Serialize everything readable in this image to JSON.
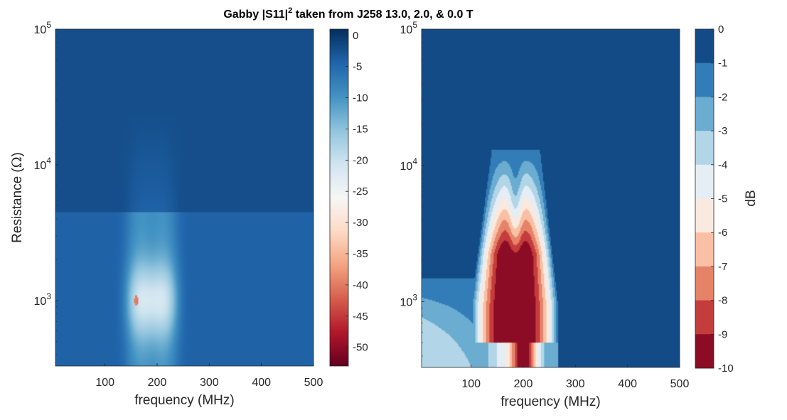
{
  "figure": {
    "title": "Gabby |S11|² taken from J258 13.0, 2.0, & 0.0 T"
  },
  "colors": {
    "dark_red": "#67001f",
    "red": "#b2182b",
    "mid_red": "#d6604d",
    "salmon": "#f4a582",
    "peach": "#fddbc7",
    "white": "#f7f7f7",
    "pale_blue": "#d1e5f0",
    "light_blue": "#92c5de",
    "mid_blue": "#4393c3",
    "blue": "#2166ac",
    "dark_blue": "#053061",
    "frame": "#262626"
  },
  "chart_data": [
    {
      "type": "heatmap",
      "title": "",
      "xlabel": "frequency (MHz)",
      "ylabel": "Resistance (Ω)",
      "xlim": [
        5,
        500
      ],
      "ylim": [
        330,
        100000
      ],
      "yscale": "log",
      "x_ticks": [
        100,
        200,
        300,
        400,
        500
      ],
      "x_tick_labels": [
        "100",
        "200",
        "300",
        "400",
        "500"
      ],
      "y_ticks": [
        1000,
        10000,
        100000
      ],
      "y_tick_labels": [
        {
          "base": "10",
          "exp": "3"
        },
        {
          "base": "10",
          "exp": "4"
        },
        {
          "base": "10",
          "exp": "5"
        }
      ],
      "colorbar": {
        "label": "",
        "clim": [
          -53,
          1
        ],
        "ticks": [
          0,
          -5,
          -10,
          -15,
          -20,
          -25,
          -30,
          -35,
          -40,
          -45,
          -50
        ],
        "tick_labels": [
          "0",
          "-5",
          "-10",
          "-15",
          "-20",
          "-25",
          "-30",
          "-35",
          "-40",
          "-45",
          "-50"
        ],
        "type": "continuous"
      },
      "background_value": -2,
      "features": [
        {
          "kind": "resonance_dip",
          "f_center": 190,
          "f_halfwidth": 48,
          "r_center": 1000,
          "r_range": [
            330,
            4500
          ],
          "min_value": -22
        },
        {
          "kind": "resonance_dip",
          "f_center": 190,
          "f_halfwidth": 45,
          "r_center": 3000,
          "r_range": [
            4500,
            25000
          ],
          "min_value": -4
        },
        {
          "kind": "point_minimum",
          "f": 160,
          "r": 1000,
          "value": -40
        }
      ]
    },
    {
      "type": "heatmap",
      "title": "",
      "xlabel": "frequency (MHz)",
      "ylabel": "",
      "xlim": [
        5,
        500
      ],
      "ylim": [
        330,
        100000
      ],
      "yscale": "log",
      "x_ticks": [
        100,
        200,
        300,
        400,
        500
      ],
      "x_tick_labels": [
        "100",
        "200",
        "300",
        "400",
        "500"
      ],
      "y_ticks": [
        1000,
        10000,
        100000
      ],
      "y_tick_labels": [
        {
          "base": "10",
          "exp": "3"
        },
        {
          "base": "10",
          "exp": "4"
        },
        {
          "base": "10",
          "exp": "5"
        }
      ],
      "colorbar": {
        "label": "dB",
        "clim": [
          -10,
          0
        ],
        "ticks": [
          0,
          -1,
          -2,
          -3,
          -4,
          -5,
          -6,
          -7,
          -8,
          -9,
          -10
        ],
        "tick_labels": [
          "0",
          "-1",
          "-2",
          "-3",
          "-4",
          "-5",
          "-6",
          "-7",
          "-8",
          "-9",
          "-10"
        ],
        "type": "discrete",
        "levels": 10
      },
      "background_value": -0.5,
      "features": [
        {
          "kind": "twin_peak_region",
          "peaks_f": [
            157,
            213
          ],
          "f_edges": [
            140,
            232
          ],
          "r_top": 13000,
          "r_bottom": 330,
          "min_value": -10
        },
        {
          "kind": "low_frequency_band",
          "f_range": [
            5,
            120
          ],
          "r_range": [
            330,
            1500
          ],
          "min_value": -4
        }
      ]
    }
  ]
}
